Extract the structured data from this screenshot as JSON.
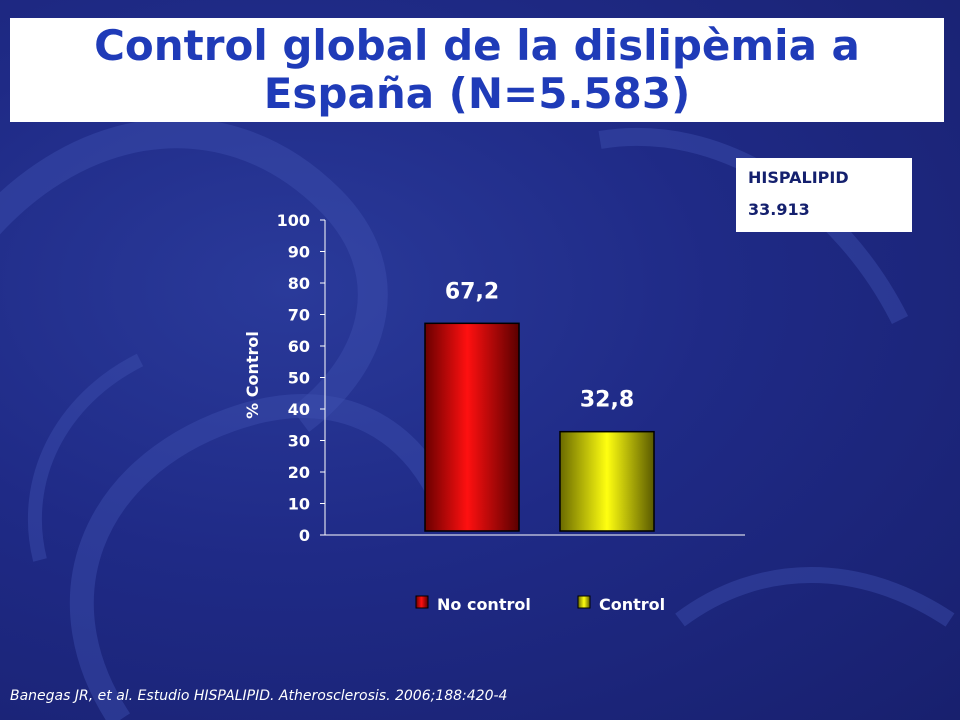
{
  "slide": {
    "title": "Control global de la dislipèmia a España (N=5.583)",
    "citation": "Banegas JR, et al. Estudio HISPALIPID. Atherosclerosis. 2006;188:420-4"
  },
  "info_box": {
    "line1": "HISPALIPID",
    "line2": "33.913"
  },
  "colors": {
    "no_control": "#e00000",
    "control": "#ffff00",
    "title": "#1f3bb8"
  },
  "chart_data": {
    "type": "bar",
    "categories": [
      "No control",
      "Control"
    ],
    "series": [
      {
        "name": "% Control",
        "values": [
          67.2,
          32.8
        ]
      }
    ],
    "data_labels": [
      "67,2",
      "32,8"
    ],
    "ylabel": "% Control",
    "ylim": [
      0,
      100
    ],
    "yticks": [
      0,
      10,
      20,
      30,
      40,
      50,
      60,
      70,
      80,
      90,
      100
    ],
    "legend": [
      "No control",
      "Control"
    ],
    "legend_position": "bottom",
    "grid": false
  }
}
